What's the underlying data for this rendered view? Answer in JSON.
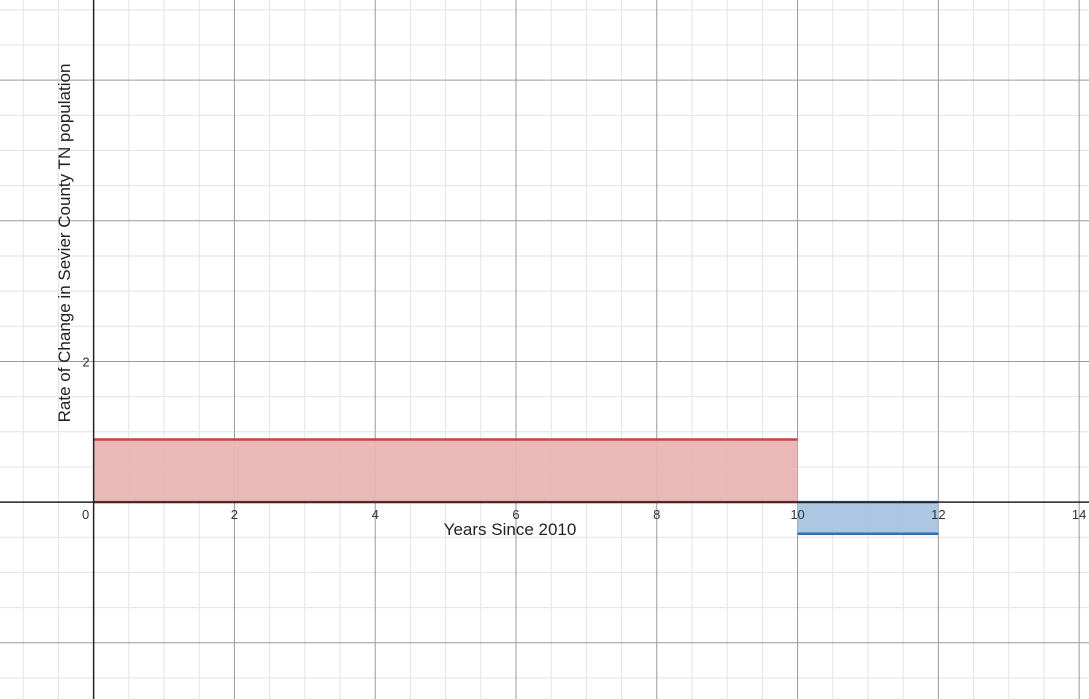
{
  "chart_data": {
    "type": "area",
    "xlabel": "Years Since 2010",
    "ylabel": "Rate of Change in Sevier County TN population",
    "xlim": [
      -1.33,
      14.14
    ],
    "ylim": [
      -2.8,
      7.14
    ],
    "x_ticks": [
      0,
      2,
      4,
      6,
      8,
      10,
      12,
      14
    ],
    "y_ticks": [
      2
    ],
    "x_tick_labels": [
      "0",
      "2",
      "4",
      "6",
      "8",
      "10",
      "12",
      "14"
    ],
    "y_tick_labels": [
      "2"
    ],
    "grid": true,
    "minor_grid_step": 0.5,
    "series": [
      {
        "x_start": 0,
        "x_end": 10,
        "value": 0.89,
        "color": "#c74440",
        "fill": "#e8b4b3"
      },
      {
        "x_start": 10,
        "x_end": 12,
        "value": -0.45,
        "color": "#2d70b3",
        "fill": "#a9c4e1"
      }
    ]
  }
}
